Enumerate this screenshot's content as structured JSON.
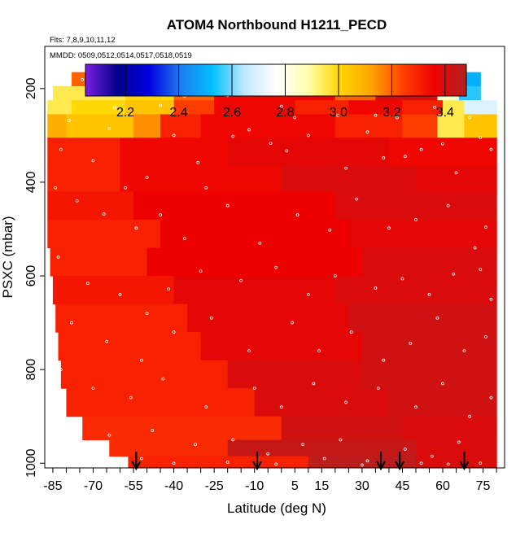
{
  "chart_data": {
    "type": "heatmap",
    "title": "ATOM4 Northbound H1211_PECD",
    "flights_note": "Flts: 7,8,9,10,11,12",
    "dates_note": "MMDD: 0509,0512,0514,0517,0518,0519",
    "xlabel": "Latitude (deg N)",
    "ylabel": "PSXC (mbar)",
    "xlim": [
      -88,
      83
    ],
    "ylim": [
      1010,
      110
    ],
    "y_reversed": true,
    "x_tick_labels": [
      -85,
      -70,
      -55,
      -40,
      -25,
      -10,
      5,
      15,
      30,
      45,
      60,
      75
    ],
    "x_minor_ticks": [
      -85,
      -80,
      -75,
      -70,
      -65,
      -60,
      -55,
      -50,
      -45,
      -40,
      -35,
      -30,
      -25,
      -20,
      -15,
      -10,
      -5,
      0,
      5,
      10,
      15,
      20,
      25,
      30,
      35,
      40,
      45,
      50,
      55,
      60,
      65,
      70,
      75,
      80
    ],
    "y_tick_labels": [
      200,
      400,
      600,
      800,
      1000
    ],
    "colorbar": {
      "range": [
        2.05,
        3.48
      ],
      "tick_labels": [
        2.2,
        2.4,
        2.6,
        2.8,
        3.0,
        3.2,
        3.4
      ],
      "divisions": [
        2.2,
        2.4,
        2.6,
        2.8,
        3.0,
        3.2,
        3.4
      ],
      "palette": [
        "#7c1fe0",
        "#00008b",
        "#0000e0",
        "#1e7cf0",
        "#00bfff",
        "#bfe8ff",
        "#ffffff",
        "#ffffb0",
        "#ffd700",
        "#ffa500",
        "#ff4000",
        "#ee0000",
        "#b22222"
      ]
    },
    "curtain": {
      "layers": [
        {
          "p_top": 165,
          "p_bottom": 195,
          "lat_min": -78,
          "lat_max": 74,
          "segments": [
            {
              "to": -73,
              "value": 3.2
            },
            {
              "to": -67,
              "value": 2.6
            },
            {
              "to": -64,
              "value": 2.8
            },
            {
              "to": -58,
              "value": 2.95
            },
            {
              "to": -48,
              "value": 3.05
            },
            {
              "to": -35,
              "value": 3.25
            },
            {
              "to": -12,
              "value": 3.35
            },
            {
              "to": 6,
              "value": 3.4
            },
            {
              "to": 22,
              "value": 3.35
            },
            {
              "to": 30,
              "value": 3.1
            },
            {
              "to": 40,
              "value": 2.95
            },
            {
              "to": 55,
              "value": 2.85
            },
            {
              "to": 64,
              "value": 2.75
            },
            {
              "to": 74,
              "value": 2.5
            }
          ]
        },
        {
          "p_top": 195,
          "p_bottom": 225,
          "lat_min": -85,
          "lat_max": 74,
          "segments": [
            {
              "to": -58,
              "value": 2.95
            },
            {
              "to": -40,
              "value": 3.0
            },
            {
              "to": -25,
              "value": 3.2
            },
            {
              "to": -5,
              "value": 3.35
            },
            {
              "to": 20,
              "value": 3.35
            },
            {
              "to": 35,
              "value": 3.2
            },
            {
              "to": 58,
              "value": 3.4
            },
            {
              "to": 66,
              "value": 2.85
            },
            {
              "to": 74,
              "value": 2.55
            }
          ]
        },
        {
          "p_top": 225,
          "p_bottom": 255,
          "lat_min": -87,
          "lat_max": 80,
          "segments": [
            {
              "to": -78,
              "value": 2.95
            },
            {
              "to": -58,
              "value": 3.0
            },
            {
              "to": -40,
              "value": 3.05
            },
            {
              "to": -25,
              "value": 3.25
            },
            {
              "to": 5,
              "value": 3.35
            },
            {
              "to": 25,
              "value": 3.3
            },
            {
              "to": 45,
              "value": 3.35
            },
            {
              "to": 60,
              "value": 3.3
            },
            {
              "to": 68,
              "value": 2.95
            },
            {
              "to": 80,
              "value": 2.7
            }
          ]
        },
        {
          "p_top": 255,
          "p_bottom": 305,
          "lat_min": -87,
          "lat_max": 80,
          "segments": [
            {
              "to": -80,
              "value": 3.1
            },
            {
              "to": -55,
              "value": 3.05
            },
            {
              "to": -45,
              "value": 3.15
            },
            {
              "to": -30,
              "value": 3.3
            },
            {
              "to": 20,
              "value": 3.35
            },
            {
              "to": 45,
              "value": 3.3
            },
            {
              "to": 58,
              "value": 3.25
            },
            {
              "to": 68,
              "value": 2.95
            },
            {
              "to": 80,
              "value": 3.05
            }
          ]
        },
        {
          "p_top": 305,
          "p_bottom": 365,
          "lat_min": -87,
          "lat_max": 80,
          "segments": [
            {
              "to": -60,
              "value": 3.3
            },
            {
              "to": -20,
              "value": 3.35
            },
            {
              "to": 40,
              "value": 3.38
            },
            {
              "to": 80,
              "value": 3.35
            }
          ]
        },
        {
          "p_top": 365,
          "p_bottom": 420,
          "lat_min": -87,
          "lat_max": 80,
          "segments": [
            {
              "to": -60,
              "value": 3.3
            },
            {
              "to": 0,
              "value": 3.35
            },
            {
              "to": 50,
              "value": 3.4
            },
            {
              "to": 80,
              "value": 3.38
            }
          ]
        },
        {
          "p_top": 420,
          "p_bottom": 480,
          "lat_min": -87,
          "lat_max": 80,
          "segments": [
            {
              "to": -55,
              "value": 3.32
            },
            {
              "to": 20,
              "value": 3.36
            },
            {
              "to": 80,
              "value": 3.4
            }
          ]
        },
        {
          "p_top": 480,
          "p_bottom": 540,
          "lat_min": -87,
          "lat_max": 80,
          "segments": [
            {
              "to": -45,
              "value": 3.3
            },
            {
              "to": 25,
              "value": 3.36
            },
            {
              "to": 80,
              "value": 3.38
            }
          ]
        },
        {
          "p_top": 540,
          "p_bottom": 600,
          "lat_min": -86,
          "lat_max": 80,
          "segments": [
            {
              "to": -50,
              "value": 3.3
            },
            {
              "to": 30,
              "value": 3.36
            },
            {
              "to": 80,
              "value": 3.4
            }
          ]
        },
        {
          "p_top": 600,
          "p_bottom": 660,
          "lat_min": -85,
          "lat_max": 80,
          "segments": [
            {
              "to": -40,
              "value": 3.32
            },
            {
              "to": 20,
              "value": 3.38
            },
            {
              "to": 80,
              "value": 3.4
            }
          ]
        },
        {
          "p_top": 660,
          "p_bottom": 720,
          "lat_min": -84,
          "lat_max": 80,
          "segments": [
            {
              "to": -35,
              "value": 3.3
            },
            {
              "to": 25,
              "value": 3.38
            },
            {
              "to": 80,
              "value": 3.42
            }
          ]
        },
        {
          "p_top": 720,
          "p_bottom": 780,
          "lat_min": -83,
          "lat_max": 80,
          "segments": [
            {
              "to": -30,
              "value": 3.3
            },
            {
              "to": 30,
              "value": 3.38
            },
            {
              "to": 80,
              "value": 3.42
            }
          ]
        },
        {
          "p_top": 780,
          "p_bottom": 840,
          "lat_min": -82,
          "lat_max": 80,
          "segments": [
            {
              "to": -20,
              "value": 3.3
            },
            {
              "to": 30,
              "value": 3.4
            },
            {
              "to": 80,
              "value": 3.42
            }
          ]
        },
        {
          "p_top": 840,
          "p_bottom": 900,
          "lat_min": -80,
          "lat_max": 80,
          "segments": [
            {
              "to": -10,
              "value": 3.3
            },
            {
              "to": 40,
              "value": 3.4
            },
            {
              "to": 80,
              "value": 3.42
            }
          ]
        },
        {
          "p_top": 900,
          "p_bottom": 950,
          "lat_min": -74,
          "lat_max": 80,
          "segments": [
            {
              "to": 0,
              "value": 3.28
            },
            {
              "to": 45,
              "value": 3.42
            },
            {
              "to": 80,
              "value": 3.4
            }
          ]
        },
        {
          "p_top": 950,
          "p_bottom": 985,
          "lat_min": -64,
          "lat_max": 80,
          "segments": [
            {
              "to": -20,
              "value": 3.28
            },
            {
              "to": 50,
              "value": 3.44
            },
            {
              "to": 80,
              "value": 3.4
            }
          ]
        },
        {
          "p_top": 985,
          "p_bottom": 1010,
          "lat_min": -57,
          "lat_max": 80,
          "segments": [
            {
              "to": 10,
              "value": 3.3
            },
            {
              "to": 50,
              "value": 3.46
            },
            {
              "to": 80,
              "value": 3.4
            }
          ]
        }
      ]
    },
    "arrows_latitudes": [
      -54,
      -9,
      37,
      44,
      68
    ],
    "sample_points": [
      [
        -74,
        181
      ],
      [
        -58,
        182
      ],
      [
        -62,
        241
      ],
      [
        -45,
        236
      ],
      [
        -36,
        216
      ],
      [
        -20,
        215
      ],
      [
        -18,
        302
      ],
      [
        0,
        238
      ],
      [
        5,
        262
      ],
      [
        21,
        258
      ],
      [
        35,
        257
      ],
      [
        43,
        262
      ],
      [
        57,
        240
      ],
      [
        70,
        262
      ],
      [
        -79,
        268
      ],
      [
        -82,
        330
      ],
      [
        -70,
        354
      ],
      [
        -64,
        285
      ],
      [
        -58,
        412
      ],
      [
        -50,
        390
      ],
      [
        -40,
        300
      ],
      [
        -31,
        358
      ],
      [
        -28,
        412
      ],
      [
        -12,
        288
      ],
      [
        -4,
        317
      ],
      [
        2,
        333
      ],
      [
        10,
        300
      ],
      [
        24,
        370
      ],
      [
        32,
        293
      ],
      [
        38,
        348
      ],
      [
        46,
        345
      ],
      [
        52,
        330
      ],
      [
        60,
        318
      ],
      [
        65,
        380
      ],
      [
        74,
        305
      ],
      [
        78,
        330
      ],
      [
        -84,
        412
      ],
      [
        -76,
        440
      ],
      [
        -66,
        468
      ],
      [
        -54,
        498
      ],
      [
        -45,
        470
      ],
      [
        -36,
        520
      ],
      [
        -20,
        450
      ],
      [
        -8,
        530
      ],
      [
        6,
        470
      ],
      [
        18,
        502
      ],
      [
        28,
        436
      ],
      [
        40,
        498
      ],
      [
        50,
        480
      ],
      [
        62,
        450
      ],
      [
        72,
        540
      ],
      [
        76,
        496
      ],
      [
        -83,
        560
      ],
      [
        -72,
        616
      ],
      [
        -60,
        640
      ],
      [
        -50,
        680
      ],
      [
        -42,
        628
      ],
      [
        -30,
        590
      ],
      [
        -15,
        610
      ],
      [
        -2,
        582
      ],
      [
        10,
        640
      ],
      [
        20,
        600
      ],
      [
        35,
        626
      ],
      [
        45,
        606
      ],
      [
        55,
        640
      ],
      [
        64,
        596
      ],
      [
        74,
        586
      ],
      [
        78,
        650
      ],
      [
        -78,
        700
      ],
      [
        -65,
        740
      ],
      [
        -52,
        780
      ],
      [
        -40,
        720
      ],
      [
        -26,
        690
      ],
      [
        -12,
        760
      ],
      [
        4,
        700
      ],
      [
        14,
        760
      ],
      [
        26,
        720
      ],
      [
        38,
        780
      ],
      [
        48,
        744
      ],
      [
        58,
        690
      ],
      [
        68,
        760
      ],
      [
        76,
        730
      ],
      [
        -82,
        800
      ],
      [
        -70,
        840
      ],
      [
        -56,
        860
      ],
      [
        -44,
        820
      ],
      [
        -28,
        880
      ],
      [
        -10,
        840
      ],
      [
        0,
        880
      ],
      [
        12,
        830
      ],
      [
        24,
        870
      ],
      [
        36,
        840
      ],
      [
        50,
        880
      ],
      [
        60,
        830
      ],
      [
        70,
        900
      ],
      [
        78,
        860
      ],
      [
        -64,
        940
      ],
      [
        -48,
        930
      ],
      [
        -32,
        960
      ],
      [
        -18,
        950
      ],
      [
        -5,
        980
      ],
      [
        8,
        960
      ],
      [
        22,
        950
      ],
      [
        32,
        995
      ],
      [
        46,
        970
      ],
      [
        56,
        985
      ],
      [
        66,
        955
      ],
      [
        74,
        1000
      ],
      [
        -52,
        990
      ],
      [
        -40,
        1000
      ],
      [
        -20,
        998
      ],
      [
        -2,
        1002
      ],
      [
        16,
        990
      ],
      [
        30,
        1004
      ],
      [
        52,
        1000
      ],
      [
        62,
        1002
      ]
    ]
  }
}
